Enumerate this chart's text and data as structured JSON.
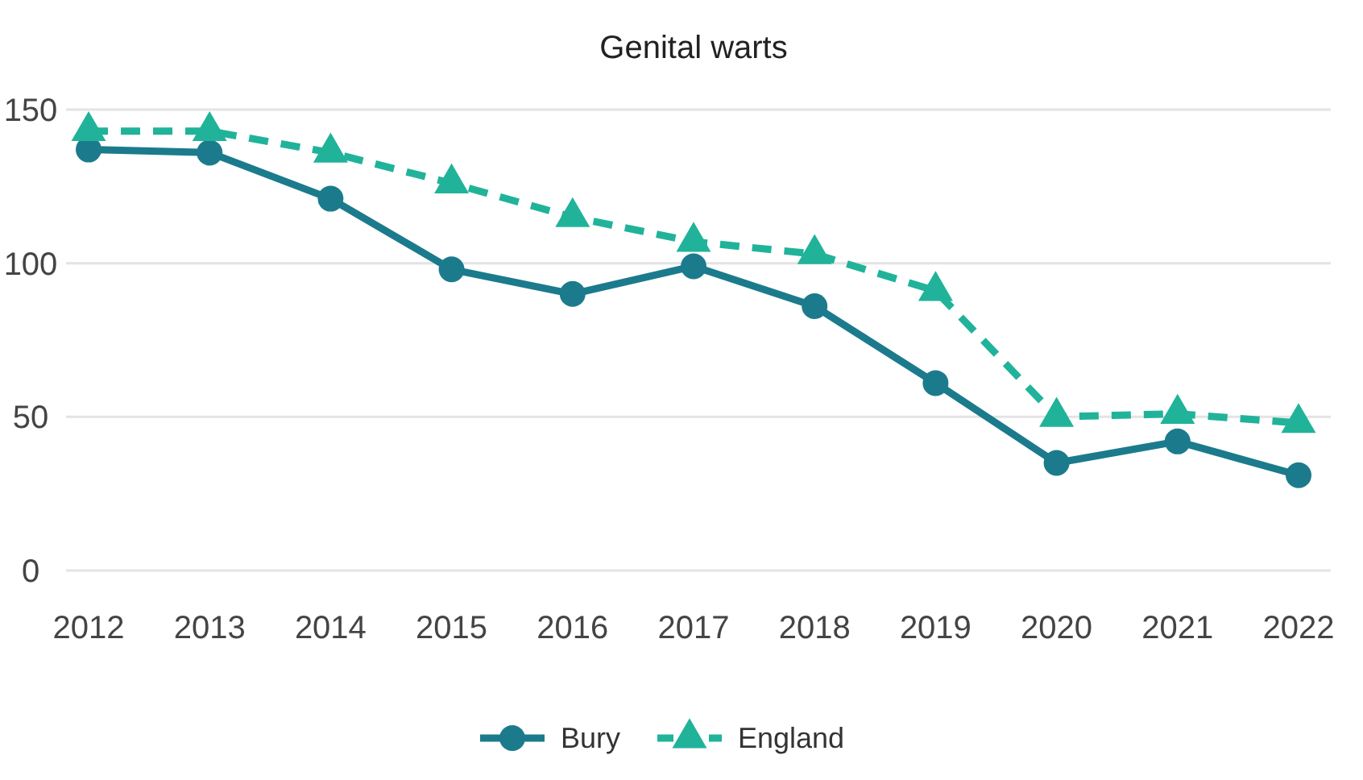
{
  "chart_data": {
    "type": "line",
    "title": "Genital warts",
    "categories": [
      "2012",
      "2013",
      "2014",
      "2015",
      "2016",
      "2017",
      "2018",
      "2019",
      "2020",
      "2021",
      "2022"
    ],
    "series": [
      {
        "name": "Bury",
        "color": "#1b7b8c",
        "marker": "circle",
        "line_style": "solid",
        "values": [
          137,
          136,
          121,
          98,
          90,
          99,
          86,
          61,
          35,
          42,
          31
        ]
      },
      {
        "name": "England",
        "color": "#20b39a",
        "marker": "triangle",
        "line_style": "dashed",
        "values": [
          143,
          143,
          136,
          126,
          115,
          107,
          103,
          91,
          50,
          51,
          48
        ]
      }
    ],
    "ylim": [
      0,
      150
    ],
    "yticks": [
      0,
      50,
      100,
      150
    ],
    "grid": "y",
    "legend": "bottom"
  }
}
